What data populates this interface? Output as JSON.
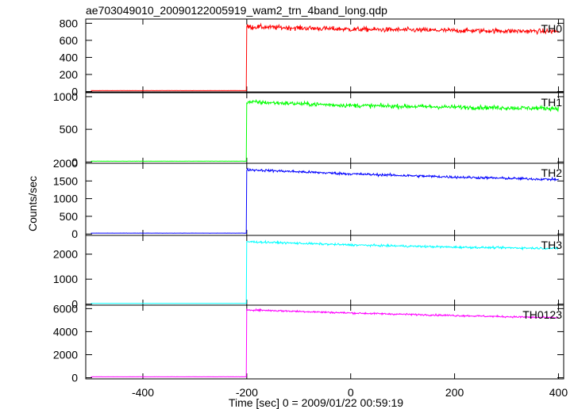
{
  "chart_data": {
    "type": "line",
    "title": "ae703049010_20090122005919_wam2_trn_4band_long.qdp",
    "xlabel": "Time [sec] 0 = 2009/01/22 00:59:19",
    "ylabel": "Counts/sec",
    "xlim": [
      -510,
      410
    ],
    "xticks": [
      -400,
      -200,
      0,
      200,
      400
    ],
    "grid": false,
    "step_time": -200,
    "panels": [
      {
        "name": "TH0",
        "color": "#ff0000",
        "ylim": [
          -5,
          850
        ],
        "yticks": [
          0,
          200,
          400,
          600,
          800
        ],
        "pre_level": 10,
        "post_x": [
          -200,
          0,
          200,
          400
        ],
        "post_y": [
          760,
          730,
          715,
          705
        ],
        "noise": 28
      },
      {
        "name": "TH1",
        "color": "#00ff00",
        "ylim": [
          -20,
          1060
        ],
        "yticks": [
          0,
          500,
          1000
        ],
        "pre_level": 12,
        "post_x": [
          -200,
          0,
          200,
          400
        ],
        "post_y": [
          920,
          865,
          840,
          820
        ],
        "noise": 32
      },
      {
        "name": "TH2",
        "color": "#0000ff",
        "ylim": [
          -40,
          2000
        ],
        "yticks": [
          0,
          500,
          1000,
          1500,
          2000
        ],
        "pre_level": 25,
        "post_x": [
          -200,
          0,
          200,
          400
        ],
        "post_y": [
          1820,
          1700,
          1610,
          1540
        ],
        "noise": 35
      },
      {
        "name": "TH3",
        "color": "#00ffff",
        "ylim": [
          -40,
          2750
        ],
        "yticks": [
          0,
          1000,
          2000
        ],
        "pre_level": 30,
        "post_x": [
          -200,
          0,
          200,
          400
        ],
        "post_y": [
          2500,
          2370,
          2280,
          2230
        ],
        "noise": 40
      },
      {
        "name": "TH0123",
        "color": "#ff00ff",
        "ylim": [
          -100,
          6300
        ],
        "yticks": [
          0,
          2000,
          4000,
          6000
        ],
        "pre_level": 80,
        "post_x": [
          -200,
          0,
          200,
          400
        ],
        "post_y": [
          5900,
          5620,
          5400,
          5200
        ],
        "noise": 75
      }
    ]
  }
}
